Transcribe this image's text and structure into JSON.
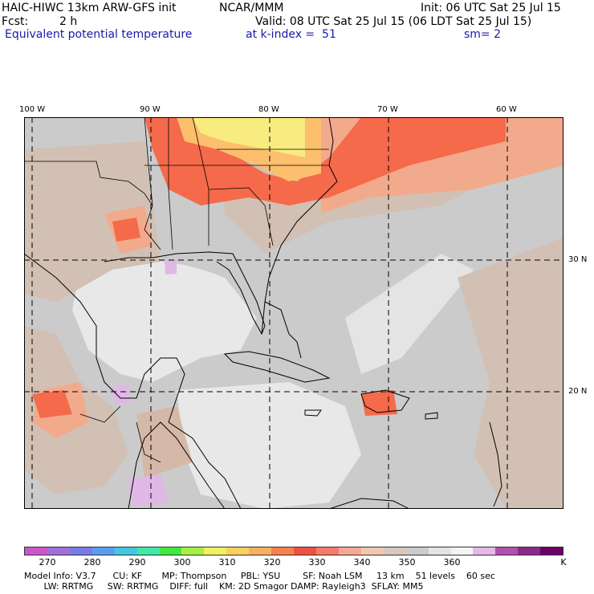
{
  "header": {
    "model_title": "HAIC-HIWC 13km ARW-GFS init",
    "org": "NCAR/MMM",
    "init": "Init: 06 UTC Sat 25 Jul 15",
    "fcst_label": "Fcst:",
    "fcst_value": "2 h",
    "valid": "Valid: 08 UTC Sat 25 Jul 15 (06 LDT Sat 25 Jul 15)",
    "field": "Equivalent potential temperature",
    "level": "at k-index =  51",
    "smooth": "sm= 2"
  },
  "map": {
    "lon_labels": [
      "100 W",
      "90 W",
      "80 W",
      "70 W",
      "60 W"
    ],
    "lat_labels": [
      "30 N",
      "20 N"
    ],
    "colors": {
      "ocean_gray": "#cbcbcb",
      "light_gray": "#e8e8e8",
      "tan": "#d2c0b4",
      "salmon": "#f2aa8c",
      "red_orange": "#f56a4b",
      "orange": "#fcbf6e",
      "yellow": "#f8ec80",
      "lavender": "#e0b8e6",
      "grid": "#000000",
      "coast": "#000000"
    }
  },
  "colorbar": {
    "unit": "K",
    "tick_labels": [
      "270",
      "280",
      "290",
      "300",
      "310",
      "320",
      "330",
      "340",
      "350",
      "360"
    ],
    "colors": [
      "#cc55cc",
      "#a070d8",
      "#7a7ae6",
      "#5a9ef0",
      "#40c8e0",
      "#40e8a8",
      "#40e840",
      "#a8f040",
      "#f0f060",
      "#f8d060",
      "#f8b060",
      "#f88050",
      "#f05040",
      "#f57a6a",
      "#f5a894",
      "#f0c8b0",
      "#d8c8be",
      "#cccccc",
      "#e4e4e4",
      "#f4f4f4",
      "#e8b8e8",
      "#b050b0",
      "#8a2a8a",
      "#6a006a"
    ]
  },
  "footer": {
    "line1": "Model Info: V3.7      CU: KF       MP: Thompson     PBL: YSU        SF: Noah LSM     13 km    51 levels    60 sec",
    "line2": "       LW: RRTMG     SW: RRTMG    DIFF: full    KM: 2D Smagor DAMP: Rayleigh3  SFLAY: MM5"
  }
}
